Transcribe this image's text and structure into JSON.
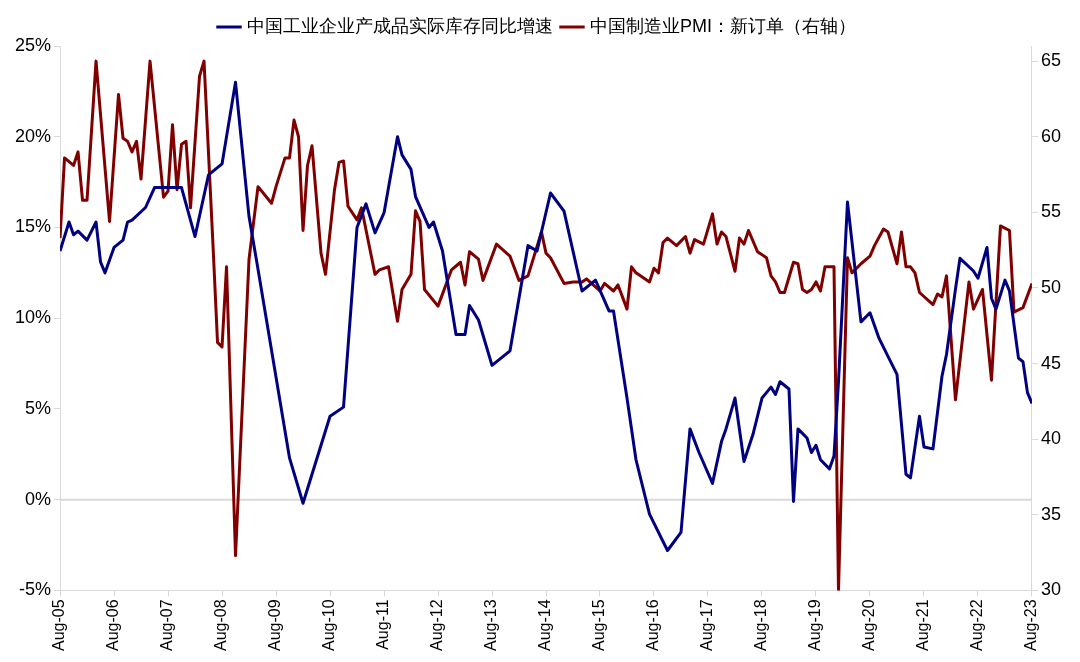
{
  "chart_data": {
    "type": "line",
    "legend": "top",
    "marker": "none",
    "line_style": "solid",
    "xlim": [
      "2005-08",
      "2023-08"
    ],
    "xticks": [
      {
        "value": "2005-08",
        "label": "Aug-05"
      },
      {
        "value": "2006-08",
        "label": "Aug-06"
      },
      {
        "value": "2007-08",
        "label": "Aug-07"
      },
      {
        "value": "2008-08",
        "label": "Aug-08"
      },
      {
        "value": "2009-08",
        "label": "Aug-09"
      },
      {
        "value": "2010-08",
        "label": "Aug-10"
      },
      {
        "value": "2011-08",
        "label": "Aug-11"
      },
      {
        "value": "2012-08",
        "label": "Aug-12"
      },
      {
        "value": "2013-08",
        "label": "Aug-13"
      },
      {
        "value": "2014-08",
        "label": "Aug-14"
      },
      {
        "value": "2015-08",
        "label": "Aug-15"
      },
      {
        "value": "2016-08",
        "label": "Aug-16"
      },
      {
        "value": "2017-08",
        "label": "Aug-17"
      },
      {
        "value": "2018-08",
        "label": "Aug-18"
      },
      {
        "value": "2019-08",
        "label": "Aug-19"
      },
      {
        "value": "2020-08",
        "label": "Aug-20"
      },
      {
        "value": "2021-08",
        "label": "Aug-21"
      },
      {
        "value": "2022-08",
        "label": "Aug-22"
      },
      {
        "value": "2023-08",
        "label": "Aug-23"
      }
    ],
    "ylim": [
      -5,
      25
    ],
    "yticks": [
      {
        "value": -5,
        "label": "-5%"
      },
      {
        "value": 0,
        "label": "0%"
      },
      {
        "value": 5,
        "label": "5%"
      },
      {
        "value": 10,
        "label": "10%"
      },
      {
        "value": 15,
        "label": "15%"
      },
      {
        "value": 20,
        "label": "20%"
      },
      {
        "value": 25,
        "label": "25%"
      }
    ],
    "y2lim": [
      30,
      66
    ],
    "y2ticks": [
      30,
      35,
      40,
      45,
      50,
      55,
      60,
      65
    ],
    "ref_lines": [
      {
        "axis": "y",
        "value": 0,
        "color": "#d9d9d9"
      }
    ],
    "series": [
      {
        "name": "中国工业企业产成品实际库存同比增速",
        "color": "#000080",
        "x": [
          "2005-08",
          "2005-10",
          "2005-11",
          "2005-12",
          "2006-02",
          "2006-04",
          "2006-05",
          "2006-06",
          "2006-08",
          "2006-10",
          "2006-11",
          "2006-12",
          "2007-03",
          "2007-05",
          "2007-11",
          "2008-02",
          "2008-05",
          "2008-08",
          "2008-11",
          "2009-02",
          "2009-04",
          "2009-11",
          "2010-02",
          "2010-08",
          "2010-11",
          "2011-02",
          "2011-04",
          "2011-06",
          "2011-08",
          "2011-11",
          "2011-12",
          "2012-02",
          "2012-03",
          "2012-06",
          "2012-07",
          "2012-09",
          "2012-12",
          "2013-02",
          "2013-03",
          "2013-05",
          "2013-08",
          "2013-10",
          "2013-12",
          "2014-04",
          "2014-06",
          "2014-09",
          "2014-12",
          "2015-04",
          "2015-07",
          "2015-10",
          "2015-11",
          "2016-02",
          "2016-04",
          "2016-07",
          "2016-11",
          "2017-02",
          "2017-04",
          "2017-06",
          "2017-09",
          "2017-11",
          "2017-12",
          "2018-02",
          "2018-04",
          "2018-06",
          "2018-08",
          "2018-10",
          "2018-11",
          "2018-12",
          "2019-02",
          "2019-03",
          "2019-04",
          "2019-06",
          "2019-07",
          "2019-08",
          "2019-09",
          "2019-11",
          "2019-12",
          "2020-01",
          "2020-03",
          "2020-04",
          "2020-06",
          "2020-08",
          "2020-10",
          "2020-12",
          "2021-02",
          "2021-04",
          "2021-05",
          "2021-07",
          "2021-08",
          "2021-10",
          "2021-12",
          "2022-01",
          "2022-03",
          "2022-04",
          "2022-07",
          "2022-08",
          "2022-10",
          "2022-11",
          "2022-12",
          "2023-02",
          "2023-03",
          "2023-05",
          "2023-06",
          "2023-07",
          "2023-08"
        ],
        "values": [
          13.7,
          15.3,
          14.6,
          14.8,
          14.3,
          15.3,
          13.1,
          12.5,
          13.9,
          14.3,
          15.3,
          15.4,
          16.1,
          17.2,
          17.2,
          14.5,
          17.9,
          18.5,
          23.0,
          15.6,
          12.7,
          2.3,
          -0.2,
          4.6,
          5.1,
          15.0,
          16.3,
          14.7,
          15.8,
          20.0,
          19.0,
          18.2,
          16.7,
          15.0,
          15.3,
          13.7,
          9.1,
          9.1,
          10.7,
          9.9,
          7.4,
          7.8,
          8.2,
          14.0,
          13.7,
          16.9,
          15.9,
          11.5,
          12.1,
          10.4,
          10.4,
          5.6,
          2.2,
          -0.8,
          -2.8,
          -1.8,
          3.9,
          2.6,
          0.9,
          3.2,
          3.9,
          5.6,
          2.1,
          3.6,
          5.6,
          6.2,
          5.8,
          6.5,
          6.1,
          -0.1,
          3.9,
          3.4,
          2.6,
          3.0,
          2.2,
          1.7,
          2.4,
          6.5,
          16.4,
          14.2,
          9.8,
          10.3,
          8.9,
          7.9,
          6.9,
          1.4,
          1.2,
          4.6,
          2.9,
          2.8,
          6.8,
          8.0,
          11.6,
          13.3,
          12.6,
          12.2,
          13.9,
          11.1,
          10.5,
          12.1,
          11.5,
          7.8,
          7.6,
          5.9,
          5.3
        ]
      },
      {
        "name": "中国制造业PMI：新订单（右轴）",
        "color": "#800000",
        "axis": "y2",
        "x": [
          "2005-08",
          "2005-09",
          "2005-11",
          "2005-12",
          "2006-01",
          "2006-02",
          "2006-04",
          "2006-07",
          "2006-09",
          "2006-10",
          "2006-11",
          "2006-12",
          "2007-01",
          "2007-02",
          "2007-04",
          "2007-07",
          "2007-08",
          "2007-09",
          "2007-10",
          "2007-11",
          "2007-12",
          "2008-01",
          "2008-03",
          "2008-04",
          "2008-06",
          "2008-07",
          "2008-08",
          "2008-09",
          "2008-11",
          "2009-02",
          "2009-04",
          "2009-07",
          "2009-08",
          "2009-10",
          "2009-11",
          "2009-12",
          "2010-01",
          "2010-02",
          "2010-03",
          "2010-04",
          "2010-06",
          "2010-07",
          "2010-09",
          "2010-10",
          "2010-11",
          "2010-12",
          "2011-02",
          "2011-03",
          "2011-06",
          "2011-07",
          "2011-09",
          "2011-11",
          "2011-12",
          "2012-02",
          "2012-03",
          "2012-04",
          "2012-05",
          "2012-08",
          "2012-11",
          "2013-01",
          "2013-02",
          "2013-03",
          "2013-05",
          "2013-06",
          "2013-09",
          "2013-12",
          "2014-02",
          "2014-04",
          "2014-07",
          "2014-08",
          "2014-09",
          "2014-12",
          "2015-02",
          "2015-04",
          "2015-05",
          "2015-08",
          "2015-09",
          "2015-11",
          "2015-12",
          "2016-02",
          "2016-03",
          "2016-04",
          "2016-07",
          "2016-08",
          "2016-09",
          "2016-10",
          "2016-11",
          "2017-01",
          "2017-03",
          "2017-04",
          "2017-05",
          "2017-07",
          "2017-09",
          "2017-10",
          "2017-11",
          "2017-12",
          "2018-02",
          "2018-03",
          "2018-04",
          "2018-05",
          "2018-07",
          "2018-09",
          "2018-10",
          "2018-11",
          "2018-12",
          "2019-01",
          "2019-03",
          "2019-04",
          "2019-05",
          "2019-06",
          "2019-07",
          "2019-08",
          "2019-09",
          "2019-10",
          "2019-12",
          "2020-01",
          "2020-03",
          "2020-04",
          "2020-06",
          "2020-08",
          "2020-09",
          "2020-11",
          "2020-12",
          "2021-02",
          "2021-03",
          "2021-04",
          "2021-05",
          "2021-06",
          "2021-07",
          "2021-10",
          "2021-11",
          "2021-12",
          "2022-01",
          "2022-03",
          "2022-06",
          "2022-07",
          "2022-09",
          "2022-11",
          "2023-01",
          "2023-03",
          "2023-04",
          "2023-06",
          "2023-08"
        ],
        "values": [
          53.3,
          58.6,
          58.1,
          59.0,
          55.8,
          55.8,
          65.0,
          54.4,
          62.8,
          59.9,
          59.7,
          59.0,
          59.7,
          57.2,
          65.0,
          56.0,
          56.4,
          60.8,
          56.5,
          59.5,
          59.7,
          55.3,
          64.0,
          65.0,
          52.8,
          46.4,
          46.1,
          51.4,
          32.3,
          51.9,
          56.7,
          55.6,
          56.7,
          58.6,
          58.6,
          61.1,
          60.0,
          53.8,
          58.1,
          59.4,
          52.3,
          50.9,
          56.5,
          58.3,
          58.4,
          55.4,
          54.5,
          55.3,
          50.9,
          51.2,
          51.4,
          47.8,
          49.9,
          50.9,
          55.1,
          54.4,
          49.9,
          48.8,
          51.2,
          51.7,
          50.2,
          52.4,
          51.9,
          50.5,
          52.9,
          52.1,
          50.5,
          50.8,
          53.7,
          52.3,
          52.0,
          50.3,
          50.4,
          50.4,
          50.6,
          49.8,
          50.3,
          49.8,
          50.2,
          48.6,
          51.4,
          51.0,
          50.4,
          51.3,
          51.0,
          53.0,
          53.3,
          52.8,
          53.4,
          52.3,
          53.2,
          52.9,
          54.9,
          52.9,
          53.7,
          53.4,
          51.1,
          53.3,
          52.9,
          53.8,
          52.4,
          52.0,
          50.8,
          50.4,
          49.7,
          49.7,
          51.7,
          51.6,
          49.9,
          49.7,
          49.9,
          50.4,
          49.8,
          51.4,
          51.4,
          30.0,
          52.0,
          51.0,
          51.6,
          52.1,
          52.8,
          53.9,
          53.7,
          51.6,
          53.7,
          51.4,
          51.4,
          51.0,
          49.7,
          48.9,
          49.6,
          49.4,
          50.8,
          42.6,
          50.4,
          48.6,
          49.9,
          43.9,
          54.1,
          53.8,
          48.4,
          48.7,
          50.3
        ]
      }
    ]
  }
}
